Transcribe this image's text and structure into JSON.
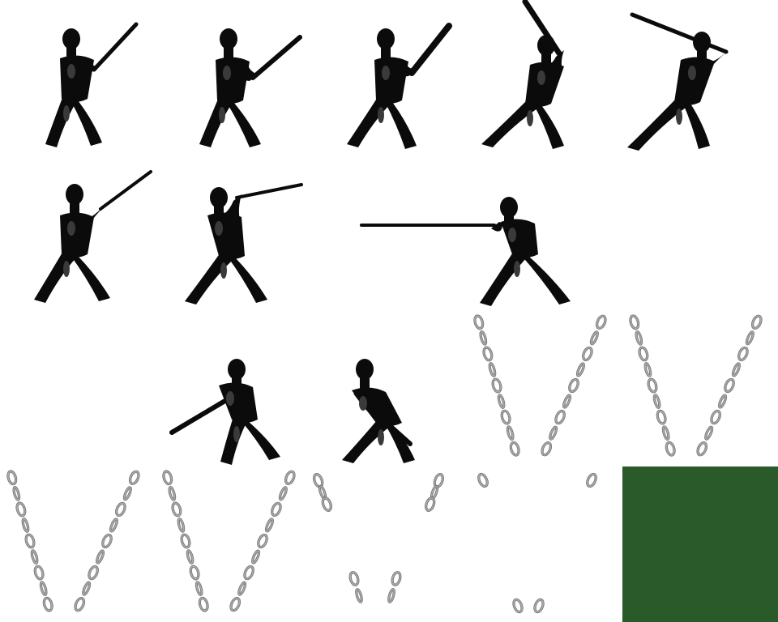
{
  "sprite_sheet": {
    "columns": 5,
    "rows": 4,
    "swordsman_frames": [
      {
        "pose": "ready"
      },
      {
        "pose": "guard-low"
      },
      {
        "pose": "guard-mid"
      },
      {
        "pose": "raise-overhead"
      },
      {
        "pose": "windup-back"
      },
      {
        "pose": "aim-forward"
      },
      {
        "pose": "aim-extended"
      },
      {
        "pose": "thrust-lunge"
      },
      {
        "pose": "recover-low"
      },
      {
        "pose": "bow-down"
      }
    ],
    "chain_frames": [
      {
        "state": "full"
      },
      {
        "state": "full"
      },
      {
        "state": "full"
      },
      {
        "state": "full"
      },
      {
        "state": "broken"
      },
      {
        "state": "fading"
      }
    ],
    "color_swatch": {
      "color": "#2a5a29"
    },
    "colors": {
      "silhouette": "#0b0b0b",
      "silhouette_highlight": "#3a3a3a",
      "chain_metal": "#a8a8a8",
      "chain_shadow": "#5e5e5e",
      "background": "#ffffff"
    }
  }
}
